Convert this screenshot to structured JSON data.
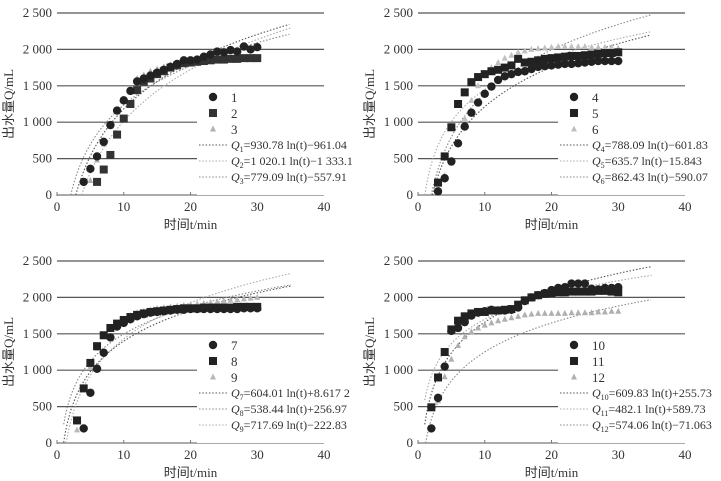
{
  "chart_data": [
    {
      "type": "scatter",
      "xlabel": "时间t/min",
      "ylabel": "出水量Q/mL",
      "xlim": [
        0,
        40
      ],
      "ylim": [
        0,
        2500
      ],
      "xticks": [
        "0",
        "10",
        "20",
        "30",
        "40"
      ],
      "yticks": [
        "0",
        "500",
        "1 000",
        "1 500",
        "2 000",
        "2 500"
      ],
      "grid": "horizontal",
      "legend": "right-middle",
      "series": [
        {
          "name": "1",
          "marker": "circle",
          "color": "#222222",
          "x": [
            4,
            5,
            6,
            7,
            8,
            9,
            10,
            11,
            12,
            13,
            14,
            15,
            16,
            17,
            18,
            19,
            20,
            21,
            22,
            23,
            24,
            25,
            26,
            27,
            28,
            29,
            30
          ],
          "y": [
            180,
            360,
            530,
            730,
            960,
            1160,
            1300,
            1430,
            1560,
            1600,
            1640,
            1680,
            1720,
            1760,
            1800,
            1850,
            1850,
            1860,
            1900,
            1930,
            1970,
            1960,
            1990,
            1970,
            2040,
            2000,
            2030
          ]
        },
        {
          "name": "2",
          "marker": "square",
          "color": "#333333",
          "x": [
            6,
            7,
            8,
            9,
            10,
            11,
            12,
            13,
            14,
            15,
            16,
            17,
            18,
            19,
            20,
            21,
            22,
            23,
            24,
            25,
            26,
            27,
            28,
            29,
            30
          ],
          "y": [
            180,
            350,
            550,
            830,
            1050,
            1250,
            1440,
            1560,
            1600,
            1660,
            1700,
            1750,
            1780,
            1810,
            1820,
            1830,
            1840,
            1850,
            1860,
            1860,
            1870,
            1870,
            1880,
            1880,
            1880
          ]
        },
        {
          "name": "3",
          "marker": "triangle",
          "color": "#b0b0b0",
          "x": [
            5,
            6,
            7,
            8,
            9,
            10,
            11,
            12,
            13,
            14,
            15,
            16,
            17,
            18,
            19,
            20,
            21,
            22,
            23,
            24,
            25,
            26,
            27,
            28,
            29,
            30
          ],
          "y": [
            200,
            480,
            700,
            950,
            1150,
            1320,
            1460,
            1600,
            1650,
            1700,
            1730,
            1760,
            1790,
            1810,
            1820,
            1830,
            1830,
            1840,
            1840,
            1850,
            1850,
            1860,
            1860,
            1870,
            1870,
            1880
          ]
        }
      ],
      "fits": [
        {
          "name": "Q1",
          "label_sub": "1",
          "label": "=930.78 ln(t)−961.04",
          "a": 930.78,
          "b": -961.04,
          "color": "#555555"
        },
        {
          "name": "Q2",
          "label_sub": "2",
          "label": "=1 020.1 ln(t)−1 333.1",
          "a": 1020.1,
          "b": -1333.1,
          "color": "#aaaaaa"
        },
        {
          "name": "Q3",
          "label_sub": "3",
          "label": "=779.09 ln(t)−557.91",
          "a": 779.09,
          "b": -557.91,
          "color": "#888888"
        }
      ]
    },
    {
      "type": "scatter",
      "xlabel": "时间t/min",
      "ylabel": "出水量Q/mL",
      "xlim": [
        0,
        40
      ],
      "ylim": [
        0,
        2500
      ],
      "xticks": [
        "0",
        "10",
        "20",
        "30",
        "40"
      ],
      "yticks": [
        "0",
        "500",
        "1 000",
        "1 500",
        "2 000",
        "2 500"
      ],
      "grid": "horizontal",
      "legend": "right-middle",
      "series": [
        {
          "name": "4",
          "marker": "circle",
          "color": "#222222",
          "x": [
            3,
            4,
            5,
            6,
            7,
            8,
            9,
            10,
            11,
            12,
            13,
            14,
            15,
            16,
            17,
            18,
            19,
            20,
            21,
            22,
            23,
            24,
            25,
            26,
            27,
            28,
            29,
            30
          ],
          "y": [
            50,
            230,
            460,
            710,
            940,
            1130,
            1270,
            1390,
            1490,
            1580,
            1630,
            1660,
            1690,
            1700,
            1730,
            1760,
            1770,
            1780,
            1790,
            1800,
            1800,
            1810,
            1820,
            1830,
            1840,
            1840,
            1840,
            1840
          ]
        },
        {
          "name": "5",
          "marker": "square",
          "color": "#222222",
          "x": [
            3,
            4,
            5,
            6,
            7,
            8,
            9,
            10,
            11,
            12,
            13,
            14,
            15,
            16,
            17,
            18,
            19,
            20,
            21,
            22,
            23,
            24,
            25,
            26,
            27,
            28,
            29,
            30
          ],
          "y": [
            170,
            530,
            930,
            1250,
            1410,
            1550,
            1620,
            1660,
            1700,
            1720,
            1750,
            1780,
            1870,
            1820,
            1830,
            1850,
            1870,
            1880,
            1890,
            1900,
            1910,
            1910,
            1920,
            1930,
            1940,
            1950,
            1950,
            1960
          ]
        },
        {
          "name": "6",
          "marker": "triangle",
          "color": "#c0c0c0",
          "x": [
            3,
            4,
            5,
            6,
            7,
            8,
            9,
            10,
            11,
            12,
            13,
            14,
            15,
            16,
            17,
            18,
            19,
            20,
            21,
            22,
            23,
            24,
            25,
            26,
            27,
            28,
            29,
            30
          ],
          "y": [
            60,
            270,
            440,
            700,
            1050,
            1300,
            1500,
            1650,
            1750,
            1820,
            1880,
            1920,
            1960,
            1980,
            2000,
            2010,
            2020,
            2030,
            2040,
            2040,
            2040,
            2040,
            2040,
            2030,
            2030,
            2030,
            2030,
            2020
          ]
        }
      ],
      "fits": [
        {
          "name": "Q4",
          "label_sub": "4",
          "label": "=788.09 ln(t)−601.83",
          "a": 788.09,
          "b": -601.83,
          "color": "#555555"
        },
        {
          "name": "Q5",
          "label_sub": "5",
          "label": "=635.7 ln(t)−15.843",
          "a": 635.7,
          "b": -15.843,
          "color": "#aaaaaa"
        },
        {
          "name": "Q6",
          "label_sub": "6",
          "label": "=862.43 ln(t)−590.07",
          "a": 862.43,
          "b": -590.07,
          "color": "#888888"
        }
      ]
    },
    {
      "type": "scatter",
      "xlabel": "时间t/min",
      "ylabel": "出水量Q/mL",
      "xlim": [
        0,
        40
      ],
      "ylim": [
        0,
        2500
      ],
      "xticks": [
        "0",
        "10",
        "20",
        "30",
        "40"
      ],
      "yticks": [
        "0",
        "500",
        "1 000",
        "1 500",
        "2 000",
        "2 500"
      ],
      "grid": "horizontal",
      "legend": "right-middle",
      "series": [
        {
          "name": "7",
          "marker": "circle",
          "color": "#222222",
          "x": [
            4,
            5,
            6,
            7,
            8,
            9,
            10,
            11,
            12,
            13,
            14,
            15,
            16,
            17,
            18,
            19,
            20,
            21,
            22,
            23,
            24,
            25,
            26,
            27,
            28,
            29,
            30
          ],
          "y": [
            200,
            690,
            1020,
            1240,
            1450,
            1600,
            1650,
            1700,
            1740,
            1770,
            1790,
            1800,
            1810,
            1820,
            1830,
            1830,
            1840,
            1840,
            1840,
            1840,
            1840,
            1840,
            1840,
            1840,
            1850,
            1850,
            1850
          ]
        },
        {
          "name": "8",
          "marker": "square",
          "color": "#222222",
          "x": [
            3,
            4,
            5,
            6,
            7,
            8,
            9,
            10,
            11,
            12,
            13,
            14,
            15,
            16,
            17,
            18,
            19,
            20,
            21,
            22,
            23,
            24,
            25,
            26,
            27,
            28,
            29,
            30
          ],
          "y": [
            310,
            750,
            1100,
            1330,
            1480,
            1580,
            1640,
            1690,
            1730,
            1760,
            1780,
            1800,
            1810,
            1820,
            1830,
            1840,
            1850,
            1850,
            1850,
            1860,
            1860,
            1860,
            1860,
            1860,
            1870,
            1870,
            1870,
            1870
          ]
        },
        {
          "name": "9",
          "marker": "triangle",
          "color": "#b8b8b8",
          "x": [
            3,
            4,
            5,
            6,
            7,
            8,
            9,
            10,
            11,
            12,
            13,
            14,
            15,
            16,
            17,
            18,
            19,
            20,
            21,
            22,
            23,
            24,
            25,
            26,
            27,
            28,
            29,
            30
          ],
          "y": [
            180,
            760,
            1050,
            1300,
            1460,
            1560,
            1640,
            1700,
            1750,
            1790,
            1810,
            1830,
            1850,
            1860,
            1870,
            1880,
            1890,
            1900,
            1910,
            1920,
            1930,
            1940,
            1950,
            1960,
            1970,
            1980,
            1990,
            2000
          ]
        }
      ],
      "fits": [
        {
          "name": "Q7",
          "label_sub": "7",
          "label": "=604.01 ln(t)+8.617 2",
          "a": 604.01,
          "b": 8.6172,
          "color": "#555555"
        },
        {
          "name": "Q8",
          "label_sub": "8",
          "label": "=538.44 ln(t)+256.97",
          "a": 538.44,
          "b": 256.97,
          "color": "#888888"
        },
        {
          "name": "Q9",
          "label_sub": "9",
          "label": "=717.69 ln(t)−222.83",
          "a": 717.69,
          "b": -222.83,
          "color": "#aaaaaa"
        }
      ]
    },
    {
      "type": "scatter",
      "xlabel": "时间t/min",
      "ylabel": "出水量Q/mL",
      "xlim": [
        0,
        40
      ],
      "ylim": [
        0,
        2500
      ],
      "xticks": [
        "0",
        "10",
        "20",
        "30",
        "40"
      ],
      "yticks": [
        "0",
        "500",
        "1 000",
        "1 500",
        "2 000",
        "2 500"
      ],
      "grid": "horizontal",
      "legend": "right-middle",
      "series": [
        {
          "name": "10",
          "marker": "circle",
          "color": "#222222",
          "x": [
            2,
            3,
            4,
            5,
            6,
            7,
            8,
            9,
            10,
            11,
            12,
            13,
            14,
            15,
            16,
            17,
            18,
            19,
            20,
            21,
            22,
            23,
            24,
            25,
            26,
            27,
            28,
            29,
            30
          ],
          "y": [
            200,
            620,
            1050,
            1540,
            1580,
            1660,
            1750,
            1790,
            1810,
            1830,
            1820,
            1820,
            1830,
            1860,
            1950,
            2000,
            2030,
            2060,
            2100,
            2130,
            2140,
            2190,
            2190,
            2190,
            2120,
            2110,
            2130,
            2130,
            2140
          ]
        },
        {
          "name": "11",
          "marker": "square",
          "color": "#222222",
          "x": [
            2,
            3,
            4,
            5,
            6,
            7,
            8,
            9,
            10,
            11,
            12,
            13,
            14,
            15,
            16,
            17,
            18,
            19,
            20,
            21,
            22,
            23,
            24,
            25,
            26,
            27,
            28,
            29,
            30
          ],
          "y": [
            490,
            900,
            1250,
            1560,
            1680,
            1740,
            1780,
            1800,
            1800,
            1820,
            1820,
            1830,
            1840,
            1900,
            1960,
            2000,
            2030,
            2050,
            2060,
            2070,
            2070,
            2080,
            2080,
            2080,
            2080,
            2090,
            2090,
            2080,
            2070
          ]
        },
        {
          "name": "12",
          "marker": "triangle",
          "color": "#b0b0b0",
          "x": [
            2,
            3,
            4,
            5,
            6,
            7,
            8,
            9,
            10,
            11,
            12,
            13,
            14,
            15,
            16,
            17,
            18,
            19,
            20,
            21,
            22,
            23,
            24,
            25,
            26,
            27,
            28,
            29,
            30
          ],
          "y": [
            210,
            580,
            910,
            1150,
            1340,
            1460,
            1530,
            1580,
            1620,
            1650,
            1680,
            1700,
            1720,
            1740,
            1760,
            1770,
            1780,
            1780,
            1780,
            1780,
            1780,
            1790,
            1790,
            1790,
            1790,
            1800,
            1800,
            1810,
            1810
          ]
        }
      ],
      "fits": [
        {
          "name": "Q10",
          "label_sub": "10",
          "label": "=609.83 ln(t)+255.73",
          "a": 609.83,
          "b": 255.73,
          "color": "#555555"
        },
        {
          "name": "Q11",
          "label_sub": "11",
          "label": "=482.1 ln(t)+589.73",
          "a": 482.1,
          "b": 589.73,
          "color": "#aaaaaa"
        },
        {
          "name": "Q12",
          "label_sub": "12",
          "label": "=574.06 ln(t)−71.063",
          "a": 574.06,
          "b": -71.063,
          "color": "#888888"
        }
      ]
    }
  ]
}
